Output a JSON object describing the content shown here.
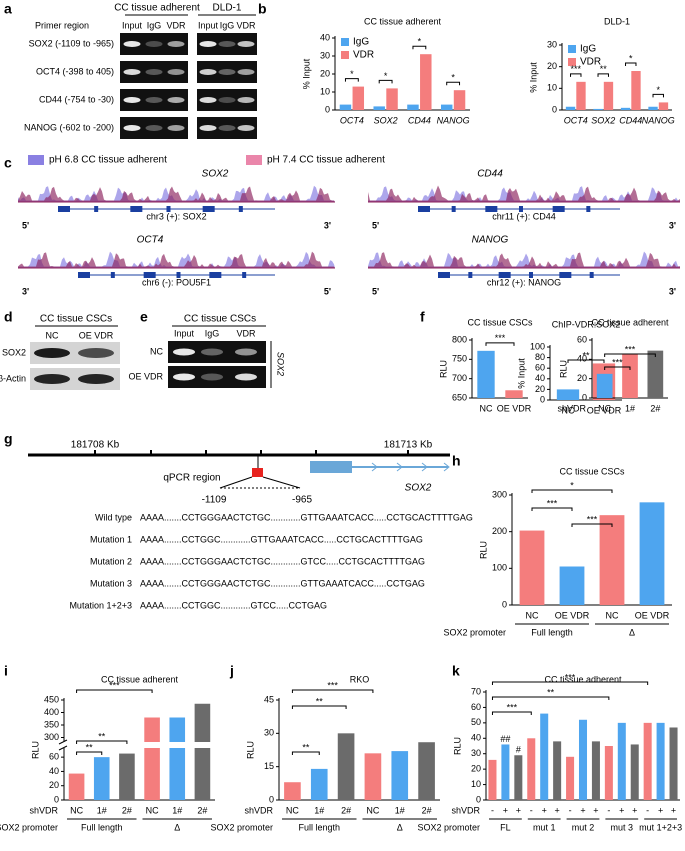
{
  "panel_labels": [
    "a",
    "b",
    "c",
    "d",
    "e",
    "f",
    "g",
    "h",
    "i",
    "j",
    "k"
  ],
  "panel_a": {
    "headers": [
      "CC tissue adherent",
      "DLD-1"
    ],
    "row_title": "Primer region",
    "lanes": [
      "Input",
      "IgG",
      "VDR",
      "Input",
      "IgG",
      "VDR"
    ],
    "rows": [
      "SOX2 (-1109 to -965)",
      "OCT4 (-398 to 405)",
      "CD44 (-754 to -30)",
      "NANOG (-602 to -200)"
    ]
  },
  "panel_c": {
    "legend": [
      "pH 6.8 CC tissue adherent",
      "pH 7.4 CC tissue adherent"
    ],
    "tracks": [
      {
        "gene": "SOX2",
        "chr": "chr3 (+): SOX2",
        "left": "5'",
        "right": "3'"
      },
      {
        "gene": "CD44",
        "chr": "chr11 (+): CD44",
        "left": "5'",
        "right": "3'"
      },
      {
        "gene": "OCT4",
        "chr": "chr6 (-): POU5F1",
        "left": "3'",
        "right": "5'"
      },
      {
        "gene": "NANOG",
        "chr": "chr12 (+): NANOG",
        "left": "5'",
        "right": "3'"
      }
    ]
  },
  "panel_d": {
    "title": "CC tissue CSCs",
    "lanes": [
      "NC",
      "OE VDR"
    ],
    "rows": [
      "SOX2",
      "β-Actin"
    ]
  },
  "panel_e": {
    "title": "CC tissue CSCs",
    "lanes": [
      "Input",
      "IgG",
      "VDR"
    ],
    "rows": [
      "NC",
      "OE VDR"
    ],
    "target": "SOX2"
  },
  "panel_g": {
    "coords": [
      "181708 Kb",
      "181713 Kb"
    ],
    "region": "qPCR region",
    "start": "-1109",
    "end": "-965",
    "gene": "SOX2",
    "sequences": [
      {
        "label": "Wild type",
        "seq": "AAAA.......CCTGGGAACTCTGC............GTTGAAATCACC.....CCTGCACTTTTGAG"
      },
      {
        "label": "Mutation 1",
        "seq": "AAAA.......CCTGGC............GTTGAAATCACC.....CCTGCACTTTTGAG"
      },
      {
        "label": "Mutation 2",
        "seq": "AAAA.......CCTGGGAACTCTGC............GTCC.....CCTGCACTTTTGAG"
      },
      {
        "label": "Mutation 3",
        "seq": "AAAA.......CCTGGGAACTCTGC............GTTGAAATCACC.....CCTGAG"
      },
      {
        "label": "Mutation 1+2+3",
        "seq": "AAAA.......CCTGGC............GTCC.....CCTGAG"
      }
    ]
  },
  "chart_data": [
    {
      "type": "bar",
      "title": "CC tissue adherent",
      "ylabel": "% Input",
      "categories": [
        "OCT4",
        "SOX2",
        "CD44",
        "NANOG"
      ],
      "series": [
        {
          "name": "IgG",
          "color": "#4ea5ef",
          "values": [
            3,
            2,
            3,
            3
          ]
        },
        {
          "name": "VDR",
          "color": "#f47d7d",
          "values": [
            13,
            12,
            31,
            11
          ]
        }
      ],
      "ylim": [
        0,
        40
      ],
      "yticks": [
        0,
        10,
        20,
        30,
        40
      ],
      "legend": "top-left",
      "annotations": [
        "*",
        "*",
        "*",
        "*"
      ]
    },
    {
      "type": "bar",
      "title": "DLD-1",
      "ylabel": "% Input",
      "categories": [
        "OCT4",
        "SOX2",
        "CD44",
        "NANOG"
      ],
      "series": [
        {
          "name": "IgG",
          "color": "#4ea5ef",
          "values": [
            1.5,
            0.5,
            1,
            1.5
          ]
        },
        {
          "name": "VDR",
          "color": "#f47d7d",
          "values": [
            13,
            13,
            18,
            3.5
          ]
        }
      ],
      "ylim": [
        0,
        30
      ],
      "yticks": [
        0,
        10,
        20,
        30
      ],
      "legend": "top-left",
      "annotations": [
        "***",
        "**",
        "*",
        "*"
      ]
    },
    {
      "type": "bar",
      "title": "ChIP-VDR:SOX2",
      "ylabel": "% Input",
      "categories": [
        "NC",
        "OE VDR"
      ],
      "values": [
        20,
        69
      ],
      "colors": [
        "#4ea5ef",
        "#f47d7d"
      ],
      "ylim": [
        0,
        100
      ],
      "yticks": [
        0,
        20,
        40,
        60,
        80,
        100
      ],
      "annotations": [
        "**"
      ]
    },
    {
      "type": "bar",
      "title": "CC tissue CSCs",
      "ylabel": "RLU",
      "categories": [
        "NC",
        "OE VDR"
      ],
      "values": [
        772,
        670
      ],
      "colors": [
        "#4ea5ef",
        "#f47d7d"
      ],
      "ylim": [
        650,
        800
      ],
      "yticks": [
        650,
        700,
        750,
        800
      ],
      "annotations": [
        "***"
      ]
    },
    {
      "type": "bar",
      "title": "CC tissue adherent",
      "ylabel": "RLU",
      "category_title": "shVDR",
      "categories": [
        "NC",
        "1#",
        "2#"
      ],
      "values": [
        25,
        45,
        49
      ],
      "colors": [
        "#4ea5ef",
        "#f47d7d",
        "#6b6b6b"
      ],
      "ylim": [
        0,
        60
      ],
      "yticks": [
        0,
        20,
        40,
        60
      ],
      "annotations": [
        "***",
        "***"
      ]
    },
    {
      "type": "bar",
      "title": "CC tissue CSCs",
      "ylabel": "RLU",
      "categories": [
        "NC",
        "OE VDR",
        "NC",
        "OE VDR"
      ],
      "values": [
        203,
        105,
        245,
        280
      ],
      "colors": [
        "#f47d7d",
        "#4ea5ef",
        "#f47d7d",
        "#4ea5ef"
      ],
      "groups": [
        "Full length",
        "Δ"
      ],
      "group_title": "SOX2 promoter",
      "ylim": [
        0,
        300
      ],
      "yticks": [
        0,
        100,
        200,
        300
      ],
      "annotations": [
        "*",
        "***",
        "***"
      ]
    },
    {
      "type": "bar",
      "title": "CC tissue adherent",
      "ylabel": "RLU",
      "category_title": "shVDR",
      "categories": [
        "NC",
        "1#",
        "2#",
        "NC",
        "1#",
        "2#"
      ],
      "values": [
        37,
        60,
        65,
        380,
        380,
        435
      ],
      "colors": [
        "#f47d7d",
        "#4ea5ef",
        "#6b6b6b",
        "#f47d7d",
        "#4ea5ef",
        "#6b6b6b"
      ],
      "groups": [
        "Full length",
        "Δ"
      ],
      "group_title": "SOX2 promoter",
      "ylim": [
        0,
        450
      ],
      "ybreak": [
        70,
        290
      ],
      "yticks": [
        0,
        20,
        40,
        60,
        300,
        350,
        400,
        450
      ],
      "annotations": [
        "***",
        "**",
        "**"
      ]
    },
    {
      "type": "bar",
      "title": "RKO",
      "ylabel": "RLU",
      "category_title": "shVDR",
      "categories": [
        "NC",
        "1#",
        "2#",
        "NC",
        "1#",
        "2#"
      ],
      "values": [
        8,
        14,
        30,
        21,
        22,
        26
      ],
      "colors": [
        "#f47d7d",
        "#4ea5ef",
        "#6b6b6b",
        "#f47d7d",
        "#4ea5ef",
        "#6b6b6b"
      ],
      "groups": [
        "Full length",
        "Δ"
      ],
      "group_title": "SOX2 promoter",
      "ylim": [
        0,
        45
      ],
      "yticks": [
        0,
        15,
        30,
        45
      ],
      "annotations": [
        "***",
        "**",
        "**"
      ]
    },
    {
      "type": "bar",
      "title": "CC tissue adherent",
      "ylabel": "RLU",
      "category_title": "shVDR",
      "categories": [
        "-",
        "+",
        "+",
        "-",
        "+",
        "+",
        "-",
        "+",
        "+",
        "-",
        "+",
        "+",
        "-",
        "+",
        "+"
      ],
      "values": [
        26,
        36,
        29,
        40,
        56,
        38,
        28,
        52,
        38,
        35,
        50,
        36,
        50,
        50,
        47
      ],
      "colors": [
        "#f47d7d",
        "#4ea5ef",
        "#6b6b6b",
        "#f47d7d",
        "#4ea5ef",
        "#6b6b6b",
        "#f47d7d",
        "#4ea5ef",
        "#6b6b6b",
        "#f47d7d",
        "#4ea5ef",
        "#6b6b6b",
        "#f47d7d",
        "#4ea5ef",
        "#6b6b6b"
      ],
      "groups": [
        "FL",
        "mut 1",
        "mut 2",
        "mut 3",
        "mut 1+2+3"
      ],
      "group_title": "SOX2 promoter",
      "ylim": [
        0,
        70
      ],
      "yticks": [
        0,
        10,
        20,
        30,
        40,
        50,
        60,
        70
      ],
      "annotations": [
        "***",
        "**",
        "***",
        "##",
        "#"
      ]
    }
  ]
}
